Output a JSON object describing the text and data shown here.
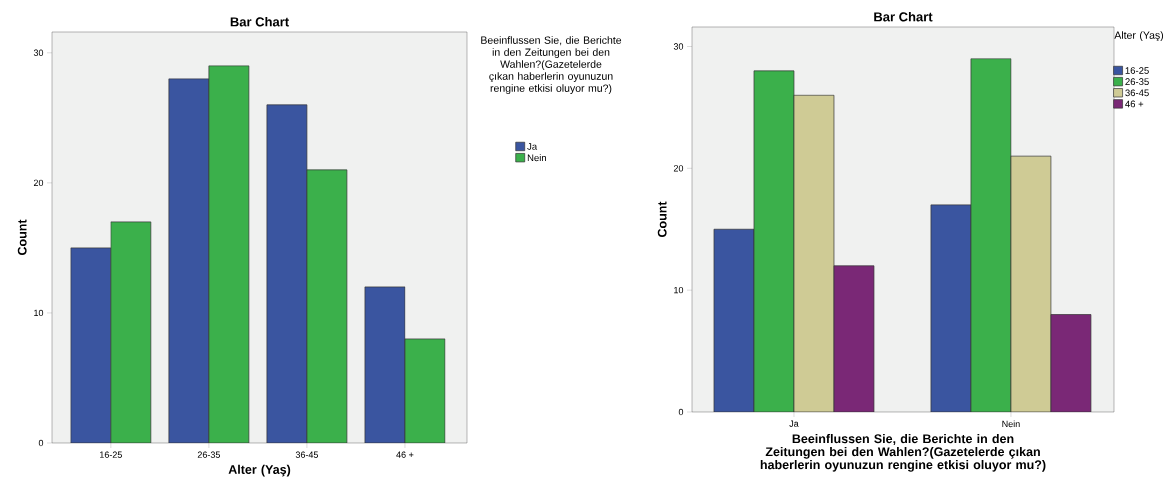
{
  "chart_data": [
    {
      "type": "bar",
      "title": "Bar Chart",
      "xlabel": "Alter (Yaş)",
      "ylabel": "Count",
      "legend_title": "Beeinflussen Sie, die Berichte in den Zeitungen bei den Wahlen?(Gazetelerde çıkan haberlerin oyunuzun rengine etkisi oluyor mu?)",
      "categories": [
        "16-25",
        "26-35",
        "36-45",
        "46 +"
      ],
      "series": [
        {
          "name": "Ja",
          "color": "#3a55a0",
          "values": [
            15,
            28,
            26,
            12
          ]
        },
        {
          "name": "Nein",
          "color": "#3bb04b",
          "values": [
            17,
            29,
            21,
            8
          ]
        }
      ],
      "ylim": [
        0,
        31.6
      ],
      "yticks": [
        0,
        10,
        20,
        30
      ],
      "legend": "right"
    },
    {
      "type": "bar",
      "title": "Bar Chart",
      "xlabel": "Beeinflussen Sie, die Berichte in den Zeitungen bei den Wahlen?(Gazetelerde çıkan haberlerin oyunuzun rengine etkisi oluyor mu?)",
      "ylabel": "Count",
      "legend_title": "Alter (Yaş)",
      "categories": [
        "Ja",
        "Nein"
      ],
      "series": [
        {
          "name": "16-25",
          "color": "#3a55a0",
          "values": [
            15,
            17
          ]
        },
        {
          "name": "26-35",
          "color": "#3bb04b",
          "values": [
            28,
            29
          ]
        },
        {
          "name": "36-45",
          "color": "#cfcb95",
          "values": [
            26,
            21
          ]
        },
        {
          "name": "46 +",
          "color": "#7a2876",
          "values": [
            12,
            8
          ]
        }
      ],
      "ylim": [
        0,
        31.6
      ],
      "yticks": [
        0,
        10,
        20,
        30
      ],
      "legend": "right"
    }
  ]
}
